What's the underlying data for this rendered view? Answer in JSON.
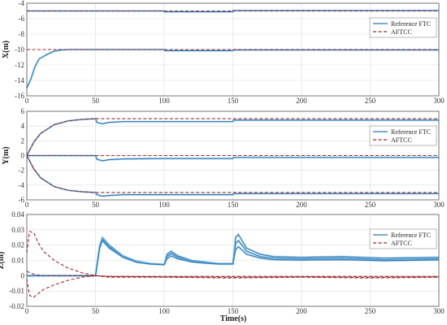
{
  "colors": {
    "reference": "#2e78b8",
    "aftcc": "#a0282d",
    "reference_light": "#9fd6ec"
  },
  "chart_data": [
    {
      "type": "line",
      "ylabel": "X(m)",
      "xlabel": "",
      "xlim": [
        0,
        300
      ],
      "ylim": [
        -16,
        -4
      ],
      "xticks": [
        0,
        50,
        100,
        150,
        200,
        250,
        300
      ],
      "yticks": [
        -16,
        -14,
        -12,
        -10,
        -8,
        -6,
        -4
      ],
      "tick_labels_x": [
        "0",
        "50",
        "100",
        "150",
        "200",
        "250",
        "300"
      ],
      "tick_labels_y": [
        "-16",
        "-14",
        "-12",
        "-10",
        "-8",
        "-6",
        "-4"
      ],
      "legend": [
        "Reference FTC",
        "AFTCC"
      ],
      "legend_position": "top-right",
      "grid": true,
      "series": [
        {
          "name": "Reference FTC",
          "group": "upper",
          "x": [
            0,
            100,
            100,
            150,
            150,
            300
          ],
          "values": [
            -5,
            -5,
            -5.1,
            -5.1,
            -4.95,
            -4.95
          ]
        },
        {
          "name": "Reference FTC",
          "group": "lower",
          "x": [
            0,
            3,
            6,
            9,
            12,
            15,
            20,
            25,
            30,
            40,
            50,
            100,
            100.5,
            150,
            150.5,
            300
          ],
          "values": [
            -15,
            -13.8,
            -12.2,
            -11.2,
            -10.9,
            -10.6,
            -10.2,
            -10.05,
            -10,
            -10,
            -10,
            -10,
            -10.15,
            -10.15,
            -10.05,
            -10.05
          ]
        },
        {
          "name": "AFTCC",
          "group": "upper",
          "x": [
            0,
            300
          ],
          "values": [
            -5,
            -5
          ]
        },
        {
          "name": "AFTCC",
          "group": "lower",
          "x": [
            0,
            300
          ],
          "values": [
            -10,
            -10
          ]
        }
      ]
    },
    {
      "type": "line",
      "ylabel": "Y(m)",
      "xlabel": "",
      "xlim": [
        0,
        300
      ],
      "ylim": [
        -6,
        6
      ],
      "xticks": [
        0,
        50,
        100,
        150,
        200,
        250,
        300
      ],
      "yticks": [
        -6,
        -4,
        -2,
        0,
        2,
        4,
        6
      ],
      "tick_labels_x": [
        "0",
        "50",
        "100",
        "150",
        "200",
        "250",
        "300"
      ],
      "tick_labels_y": [
        "-6",
        "-4",
        "-2",
        "0",
        "2",
        "4",
        "6"
      ],
      "legend": [
        "Reference FTC",
        "AFTCC"
      ],
      "legend_position": "top-right",
      "grid": true,
      "series": [
        {
          "name": "Reference FTC",
          "group": "upper",
          "x": [
            0,
            5,
            10,
            20,
            30,
            40,
            50,
            51,
            55,
            60,
            70,
            100,
            150,
            150.5,
            300
          ],
          "values": [
            0,
            1.8,
            3.0,
            4.2,
            4.7,
            4.9,
            5.0,
            4.5,
            4.3,
            4.5,
            4.6,
            4.6,
            4.6,
            4.8,
            4.8
          ]
        },
        {
          "name": "Reference FTC",
          "group": "middle",
          "x": [
            0,
            50,
            51,
            55,
            60,
            70,
            100,
            150,
            150.5,
            300
          ],
          "values": [
            0,
            0,
            -0.5,
            -0.7,
            -0.55,
            -0.45,
            -0.4,
            -0.4,
            -0.25,
            -0.25
          ]
        },
        {
          "name": "Reference FTC",
          "group": "lower",
          "x": [
            0,
            5,
            10,
            20,
            30,
            40,
            50,
            51,
            55,
            60,
            70,
            100,
            150,
            150.5,
            300
          ],
          "values": [
            0,
            -1.8,
            -3.0,
            -4.2,
            -4.7,
            -4.9,
            -5.0,
            -5.3,
            -5.5,
            -5.4,
            -5.3,
            -5.3,
            -5.3,
            -5.15,
            -5.15
          ]
        },
        {
          "name": "AFTCC",
          "group": "upper",
          "x": [
            0,
            5,
            10,
            20,
            30,
            40,
            50,
            300
          ],
          "values": [
            0,
            1.8,
            3.0,
            4.2,
            4.7,
            4.9,
            5.0,
            5.0
          ]
        },
        {
          "name": "AFTCC",
          "group": "middle",
          "x": [
            0,
            300
          ],
          "values": [
            0,
            0
          ]
        },
        {
          "name": "AFTCC",
          "group": "lower",
          "x": [
            0,
            5,
            10,
            20,
            30,
            40,
            50,
            300
          ],
          "values": [
            0,
            -1.8,
            -3.0,
            -4.2,
            -4.7,
            -4.9,
            -5.0,
            -5.0
          ]
        }
      ]
    },
    {
      "type": "line",
      "ylabel": "Z(m)",
      "xlabel": "Time(s)",
      "xlim": [
        0,
        300
      ],
      "ylim": [
        -0.02,
        0.04
      ],
      "xticks": [
        0,
        50,
        100,
        150,
        200,
        250,
        300
      ],
      "yticks": [
        -0.02,
        -0.01,
        0,
        0.01,
        0.02,
        0.03,
        0.04
      ],
      "tick_labels_x": [
        "0",
        "50",
        "100",
        "150",
        "200",
        "250",
        "300"
      ],
      "tick_labels_y": [
        "-0.02",
        "-0.01",
        "0",
        "0.01",
        "0.02",
        "0.03",
        "0.04"
      ],
      "legend": [
        "Reference FTC",
        "AFTCC"
      ],
      "legend_position": "top-right",
      "grid": true,
      "series": [
        {
          "name": "Reference FTC",
          "group": "a",
          "x": [
            0,
            50,
            53,
            55,
            60,
            70,
            80,
            90,
            100,
            102,
            105,
            110,
            120,
            130,
            140,
            150,
            152,
            154,
            160,
            170,
            180,
            200,
            230,
            260,
            300
          ],
          "values": [
            0,
            0,
            0.02,
            0.025,
            0.02,
            0.013,
            0.0095,
            0.008,
            0.0075,
            0.014,
            0.016,
            0.013,
            0.01,
            0.009,
            0.008,
            0.008,
            0.025,
            0.027,
            0.018,
            0.014,
            0.0125,
            0.012,
            0.0125,
            0.0115,
            0.012
          ]
        },
        {
          "name": "Reference FTC",
          "group": "b",
          "x": [
            0,
            50,
            53,
            55,
            60,
            70,
            80,
            90,
            100,
            102,
            105,
            110,
            120,
            130,
            140,
            150,
            152,
            154,
            160,
            170,
            180,
            200,
            230,
            260,
            300
          ],
          "values": [
            0,
            0,
            0.019,
            0.024,
            0.019,
            0.0125,
            0.009,
            0.0078,
            0.0073,
            0.0125,
            0.0145,
            0.012,
            0.0095,
            0.0085,
            0.0078,
            0.0078,
            0.021,
            0.023,
            0.016,
            0.0125,
            0.0115,
            0.011,
            0.0115,
            0.0105,
            0.011
          ]
        },
        {
          "name": "Reference FTC",
          "group": "c",
          "x": [
            0,
            50,
            53,
            55,
            60,
            70,
            80,
            90,
            100,
            102,
            105,
            110,
            120,
            130,
            140,
            150,
            152,
            154,
            160,
            170,
            180,
            200,
            230,
            260,
            300
          ],
          "values": [
            0,
            0,
            0.018,
            0.023,
            0.018,
            0.012,
            0.0088,
            0.0076,
            0.0072,
            0.011,
            0.013,
            0.011,
            0.009,
            0.0082,
            0.0076,
            0.0076,
            0.017,
            0.019,
            0.014,
            0.0115,
            0.0105,
            0.0102,
            0.0105,
            0.0098,
            0.0103
          ]
        },
        {
          "name": "AFTCC",
          "group": "a",
          "x": [
            0,
            2,
            5,
            8,
            12,
            20,
            30,
            40,
            50,
            60,
            100,
            150,
            200,
            250,
            300
          ],
          "values": [
            0.015,
            0.029,
            0.028,
            0.022,
            0.016,
            0.01,
            0.005,
            0.002,
            0,
            -0.001,
            -0.001,
            -0.0015,
            -0.001,
            -0.0015,
            -0.001
          ]
        },
        {
          "name": "AFTCC",
          "group": "b",
          "x": [
            0,
            2,
            5,
            8,
            12,
            20,
            30,
            40,
            50,
            60,
            100,
            150,
            200,
            250,
            300
          ],
          "values": [
            0.003,
            0.002,
            0.001,
            0.0005,
            0,
            0,
            0,
            0,
            0,
            -0.0005,
            -0.0005,
            -0.0005,
            -0.0005,
            -0.0005,
            -0.0005
          ]
        },
        {
          "name": "AFTCC",
          "group": "c",
          "x": [
            0,
            2,
            5,
            8,
            12,
            20,
            30,
            40,
            50,
            60,
            100,
            150,
            200,
            250,
            300
          ],
          "values": [
            -0.002,
            -0.013,
            -0.014,
            -0.012,
            -0.009,
            -0.006,
            -0.003,
            -0.001,
            0,
            -0.0005,
            -0.0008,
            -0.001,
            -0.0008,
            -0.001,
            -0.0008
          ]
        }
      ]
    }
  ]
}
